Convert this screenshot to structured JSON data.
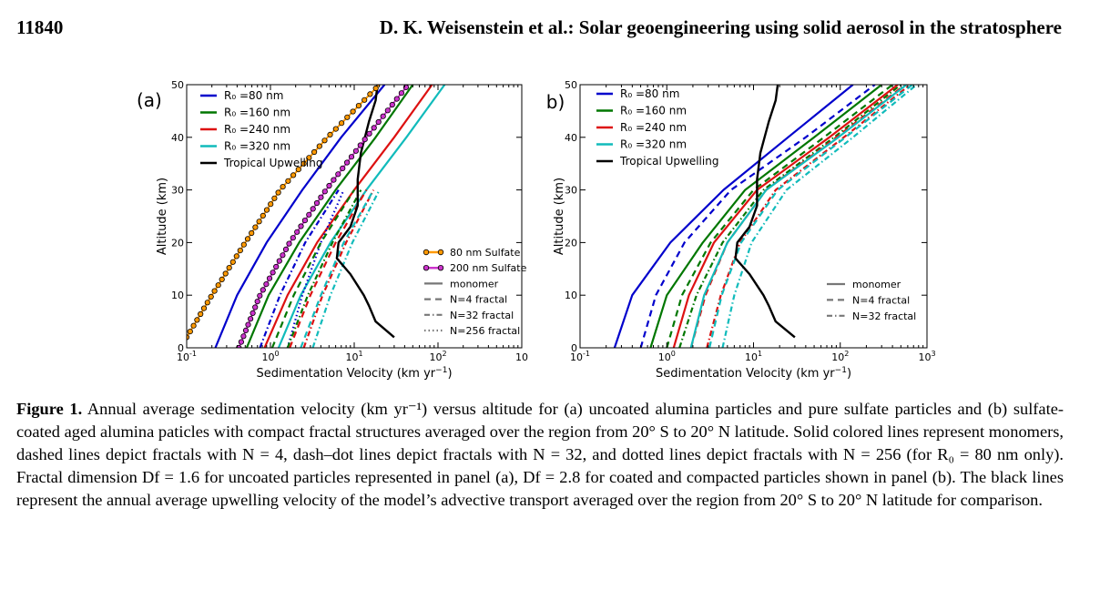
{
  "header": {
    "page_number": "11840",
    "running_title": "D. K. Weisenstein et al.: Solar geoengineering using solid aerosol in the stratosphere"
  },
  "colors": {
    "r80": "#0000cc",
    "r160": "#007700",
    "r240": "#dd1111",
    "r320": "#11bbbb",
    "upwelling": "#000000",
    "sulfate80": "#ff9900",
    "sulfate200": "#cc33cc"
  },
  "chart_data": [
    {
      "type": "line",
      "panel_label": "(a)",
      "xlabel": "Sedimentation Velocity (km yr",
      "xlabel_sup": "−1",
      "xlabel_end": ")",
      "ylabel": "Altitude (km)",
      "xscale": "log",
      "xlim": [
        0.1,
        1000
      ],
      "ylim": [
        0,
        50
      ],
      "x_tick_labels": [
        {
          "base": "10",
          "exp": "-1",
          "value": 0.1
        },
        {
          "base": "10",
          "exp": "0",
          "value": 1
        },
        {
          "base": "10",
          "exp": "1",
          "value": 10
        },
        {
          "base": "10",
          "exp": "2",
          "value": 100
        },
        {
          "base": "10",
          "exp": "",
          "value": 1000
        }
      ],
      "y_ticks": [
        "0",
        "10",
        "20",
        "30",
        "40",
        "50"
      ],
      "legend_top": [
        {
          "label": "R₀ =80 nm",
          "series": "r80"
        },
        {
          "label": "R₀ =160 nm",
          "series": "r160"
        },
        {
          "label": "R₀ =240 nm",
          "series": "r240"
        },
        {
          "label": "R₀ =320 nm",
          "series": "r320"
        },
        {
          "label": "Tropical Upwelling",
          "series": "upwelling"
        }
      ],
      "legend_bottom": [
        {
          "label": "80 nm Sulfate",
          "marker": "sulfate80"
        },
        {
          "label": "200 nm Sulfate",
          "marker": "sulfate200"
        },
        {
          "label": "monomer",
          "style": "solid"
        },
        {
          "label": "N=4 fractal",
          "style": "dashed"
        },
        {
          "label": "N=32 fractal",
          "style": "dashdot"
        },
        {
          "label": "N=256 fractal",
          "style": "dotted"
        }
      ],
      "series": [
        {
          "key": "r80",
          "style": "solid",
          "points": [
            [
              0.22,
              0
            ],
            [
              0.4,
              10
            ],
            [
              0.9,
              20
            ],
            [
              2.4,
              30
            ],
            [
              7,
              40
            ],
            [
              23,
              50
            ]
          ]
        },
        {
          "key": "r160",
          "style": "solid",
          "points": [
            [
              0.52,
              0
            ],
            [
              0.95,
              10
            ],
            [
              2.2,
              20
            ],
            [
              6,
              30
            ],
            [
              18,
              40
            ],
            [
              50,
              50
            ]
          ]
        },
        {
          "key": "r240",
          "style": "solid",
          "points": [
            [
              0.85,
              0
            ],
            [
              1.6,
              10
            ],
            [
              3.6,
              20
            ],
            [
              10,
              30
            ],
            [
              30,
              40
            ],
            [
              85,
              50
            ]
          ]
        },
        {
          "key": "r320",
          "style": "solid",
          "points": [
            [
              1.25,
              0
            ],
            [
              2.3,
              10
            ],
            [
              5.2,
              20
            ],
            [
              14,
              30
            ],
            [
              42,
              40
            ],
            [
              120,
              50
            ]
          ]
        },
        {
          "key": "r80",
          "style": "dashdot",
          "points": [
            [
              0.75,
              0
            ],
            [
              1.3,
              10
            ],
            [
              2.6,
              20
            ],
            [
              6.5,
              30
            ]
          ]
        },
        {
          "key": "r80",
          "style": "dotted",
          "points": [
            [
              1.6,
              0
            ],
            [
              2.4,
              10
            ],
            [
              4,
              20
            ],
            [
              7.5,
              30
            ]
          ]
        },
        {
          "key": "r160",
          "style": "dashed",
          "points": [
            [
              1.05,
              0
            ],
            [
              1.9,
              10
            ],
            [
              4,
              20
            ],
            [
              10,
              30
            ]
          ]
        },
        {
          "key": "r160",
          "style": "dashdot",
          "points": [
            [
              1.6,
              0
            ],
            [
              2.8,
              10
            ],
            [
              5.5,
              20
            ],
            [
              12,
              30
            ]
          ]
        },
        {
          "key": "r240",
          "style": "dashed",
          "points": [
            [
              1.7,
              0
            ],
            [
              3,
              10
            ],
            [
              6,
              20
            ],
            [
              14,
              30
            ]
          ]
        },
        {
          "key": "r240",
          "style": "dashdot",
          "points": [
            [
              2.5,
              0
            ],
            [
              4.2,
              10
            ],
            [
              8,
              20
            ],
            [
              17,
              30
            ]
          ]
        },
        {
          "key": "r320",
          "style": "dashed",
          "points": [
            [
              2.3,
              0
            ],
            [
              4,
              10
            ],
            [
              7.5,
              20
            ],
            [
              17,
              30
            ]
          ]
        },
        {
          "key": "r320",
          "style": "dashdot",
          "points": [
            [
              3.2,
              0
            ],
            [
              5.2,
              10
            ],
            [
              9.5,
              20
            ],
            [
              20,
              30
            ]
          ]
        },
        {
          "key": "upwelling",
          "style": "solid",
          "points": [
            [
              30,
              2
            ],
            [
              18,
              5
            ],
            [
              15,
              8
            ],
            [
              13,
              10
            ],
            [
              9,
              14
            ],
            [
              6.2,
              17
            ],
            [
              6.5,
              20
            ],
            [
              9,
              23
            ],
            [
              11,
              27
            ],
            [
              11,
              32
            ],
            [
              12,
              37
            ],
            [
              15,
              43
            ],
            [
              18,
              47
            ],
            [
              19,
              50
            ]
          ]
        },
        {
          "key": "sulfate80",
          "style": "markers",
          "points": [
            [
              0.1,
              2
            ],
            [
              0.2,
              10
            ],
            [
              0.5,
              20
            ],
            [
              1.3,
              30
            ],
            [
              4.8,
              40
            ],
            [
              20,
              50
            ]
          ]
        },
        {
          "key": "sulfate200",
          "style": "markers",
          "points": [
            [
              0.42,
              0
            ],
            [
              0.75,
              10
            ],
            [
              1.7,
              20
            ],
            [
              4.6,
              30
            ],
            [
              14,
              40
            ],
            [
              44,
              50
            ]
          ]
        }
      ]
    },
    {
      "type": "line",
      "panel_label": "(b)",
      "xlabel": "Sedimentation Velocity (km yr",
      "xlabel_sup": "−1",
      "xlabel_end": ")",
      "ylabel": "Altitude (km)",
      "xscale": "log",
      "xlim": [
        0.1,
        1000
      ],
      "ylim": [
        0,
        50
      ],
      "x_tick_labels": [
        {
          "base": "10",
          "exp": "-1",
          "value": 0.1
        },
        {
          "base": "10",
          "exp": "0",
          "value": 1
        },
        {
          "base": "10",
          "exp": "1",
          "value": 10
        },
        {
          "base": "10",
          "exp": "2",
          "value": 100
        },
        {
          "base": "10",
          "exp": "3",
          "value": 1000
        }
      ],
      "y_ticks": [
        "0",
        "10",
        "20",
        "30",
        "40",
        "50"
      ],
      "legend_top": [
        {
          "label": "R₀ =80 nm",
          "series": "r80"
        },
        {
          "label": "R₀ =160 nm",
          "series": "r160"
        },
        {
          "label": "R₀ =240 nm",
          "series": "r240"
        },
        {
          "label": "R₀ =320 nm",
          "series": "r320"
        },
        {
          "label": "Tropical Upwelling",
          "series": "upwelling"
        }
      ],
      "legend_bottom": [
        {
          "label": "monomer",
          "style": "solid"
        },
        {
          "label": "N=4 fractal",
          "style": "dashed"
        },
        {
          "label": "N=32 fractal",
          "style": "dashdot"
        }
      ],
      "series": [
        {
          "key": "r80",
          "style": "solid",
          "points": [
            [
              0.25,
              0
            ],
            [
              0.4,
              10
            ],
            [
              1.1,
              20
            ],
            [
              4.5,
              30
            ],
            [
              25,
              40
            ],
            [
              140,
              50
            ]
          ]
        },
        {
          "key": "r80",
          "style": "dashed",
          "points": [
            [
              0.5,
              0
            ],
            [
              0.75,
              10
            ],
            [
              1.6,
              20
            ],
            [
              5.5,
              30
            ],
            [
              40,
              40
            ],
            [
              250,
              50
            ]
          ]
        },
        {
          "key": "r160",
          "style": "solid",
          "points": [
            [
              0.65,
              0
            ],
            [
              1,
              10
            ],
            [
              2.6,
              20
            ],
            [
              8,
              30
            ],
            [
              50,
              40
            ],
            [
              300,
              50
            ]
          ]
        },
        {
          "key": "r160",
          "style": "dashed",
          "points": [
            [
              1,
              0
            ],
            [
              1.5,
              10
            ],
            [
              3.2,
              20
            ],
            [
              10,
              30
            ],
            [
              65,
              40
            ],
            [
              400,
              50
            ]
          ]
        },
        {
          "key": "r160",
          "style": "dashdot",
          "points": [
            [
              1.4,
              0
            ],
            [
              2.2,
              10
            ],
            [
              4.4,
              20
            ],
            [
              13,
              30
            ],
            [
              85,
              40
            ],
            [
              500,
              50
            ]
          ]
        },
        {
          "key": "r240",
          "style": "solid",
          "points": [
            [
              1.2,
              0
            ],
            [
              1.8,
              10
            ],
            [
              3.5,
              20
            ],
            [
              11,
              30
            ],
            [
              75,
              40
            ],
            [
              460,
              50
            ]
          ]
        },
        {
          "key": "r240",
          "style": "dashed",
          "points": [
            [
              1.9,
              0
            ],
            [
              2.8,
              10
            ],
            [
              5,
              20
            ],
            [
              14,
              30
            ],
            [
              90,
              40
            ],
            [
              560,
              50
            ]
          ]
        },
        {
          "key": "r240",
          "style": "dashdot",
          "points": [
            [
              2.9,
              0
            ],
            [
              4.2,
              10
            ],
            [
              7,
              20
            ],
            [
              18,
              30
            ],
            [
              110,
              40
            ],
            [
              640,
              50
            ]
          ]
        },
        {
          "key": "r320",
          "style": "solid",
          "points": [
            [
              1.9,
              0
            ],
            [
              2.7,
              10
            ],
            [
              5,
              20
            ],
            [
              14,
              30
            ],
            [
              95,
              40
            ],
            [
              580,
              50
            ]
          ]
        },
        {
          "key": "r320",
          "style": "dashed",
          "points": [
            [
              3.1,
              0
            ],
            [
              4.3,
              10
            ],
            [
              7.2,
              20
            ],
            [
              19,
              30
            ],
            [
              115,
              40
            ],
            [
              680,
              50
            ]
          ]
        },
        {
          "key": "r320",
          "style": "dashdot",
          "points": [
            [
              4.4,
              0
            ],
            [
              6,
              10
            ],
            [
              9.5,
              20
            ],
            [
              24,
              30
            ],
            [
              140,
              40
            ],
            [
              760,
              50
            ]
          ]
        },
        {
          "key": "upwelling",
          "style": "solid",
          "points": [
            [
              30,
              2
            ],
            [
              18,
              5
            ],
            [
              15,
              8
            ],
            [
              13,
              10
            ],
            [
              9,
              14
            ],
            [
              6.2,
              17
            ],
            [
              6.5,
              20
            ],
            [
              9,
              23
            ],
            [
              11,
              27
            ],
            [
              11,
              32
            ],
            [
              12,
              37
            ],
            [
              15,
              43
            ],
            [
              18,
              47
            ],
            [
              19,
              50
            ]
          ]
        }
      ]
    }
  ],
  "caption": {
    "label": "Figure 1.",
    "text": "Annual average sedimentation velocity (km yr⁻¹) versus altitude for (a) uncoated alumina particles and pure sulfate particles and (b) sulfate-coated aged alumina paticles with compact fractal structures averaged over the region from 20° S to 20° N latitude. Solid colored lines represent monomers, dashed lines depict fractals with N = 4, dash–dot lines depict fractals with N = 32, and dotted lines depict fractals with N = 256 (for R₀ = 80 nm only). Fractal dimension Df = 1.6 for uncoated particles represented in panel (a), Df = 2.8 for coated and compacted particles shown in panel (b). The black lines represent the annual average upwelling velocity of the model’s advective transport averaged over the region from 20° S to 20° N latitude for comparison."
  }
}
